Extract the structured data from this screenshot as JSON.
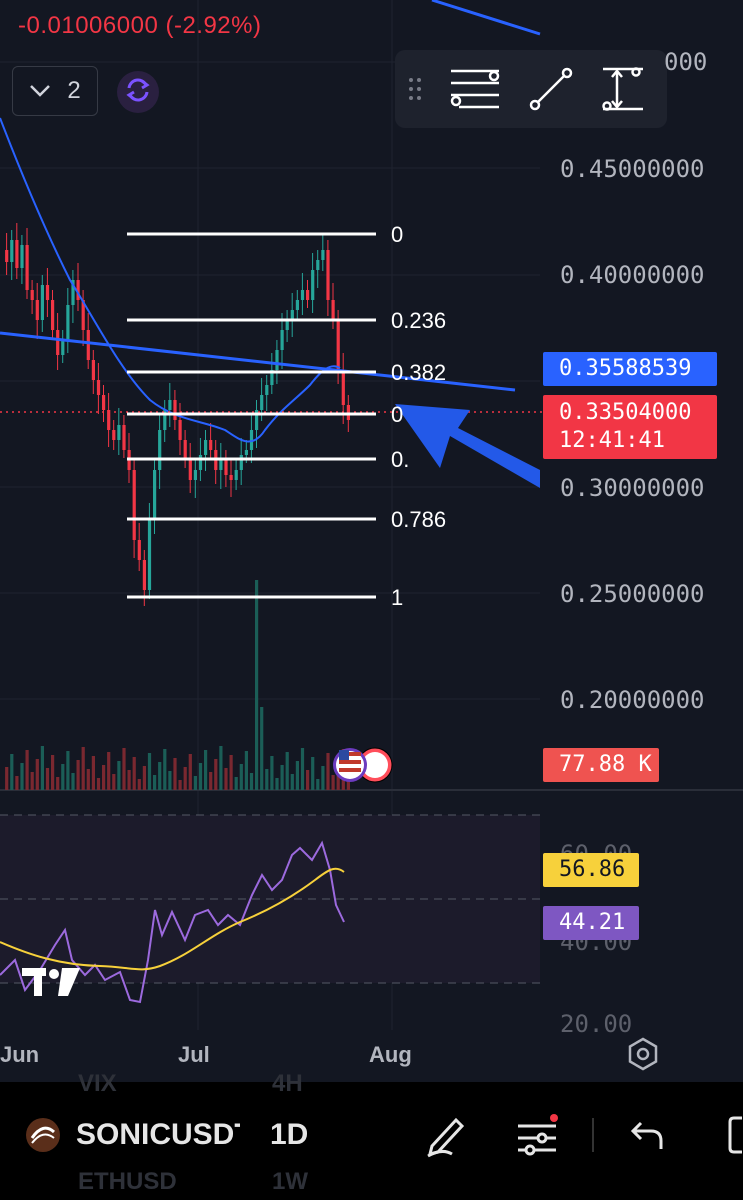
{
  "header": {
    "change_text": "-0.01006000 (-2.92%)"
  },
  "interval_selector": {
    "count": "2",
    "chevron_icon": "chevron-down-icon"
  },
  "sync_icon": "sync-icon",
  "drawing_toolbar": {
    "tools": [
      {
        "name": "drag-handle-icon"
      },
      {
        "name": "fib-retracement-icon"
      },
      {
        "name": "trend-line-icon"
      },
      {
        "name": "price-range-icon"
      }
    ]
  },
  "price_axis": {
    "partial_top_label": "000",
    "labels": [
      "0.45000000",
      "0.40000000",
      "0.30000000",
      "0.25000000",
      "0.20000000"
    ]
  },
  "price_tags": {
    "ma_value": "0.35588539",
    "last_price": "0.33504000",
    "countdown": "12:41:41",
    "volume": "77.88 K"
  },
  "fib_levels": [
    "0",
    "0.236",
    "0.382",
    "0",
    "0.",
    "0.786",
    "1"
  ],
  "rsi_axis": {
    "partial_top": "60.00",
    "partial_mid": "40.00",
    "partial_bottom": "20.00"
  },
  "rsi_tags": {
    "ma": "56.86",
    "rsi": "44.21"
  },
  "time_axis": [
    "Jun",
    "Jul",
    "Aug"
  ],
  "bottom_bar": {
    "ghost_above": [
      "VIX",
      "4H"
    ],
    "symbol": "SONICUSDT",
    "interval": "1D",
    "ghost_below": [
      "ETHUSD",
      "1W"
    ]
  },
  "colors": {
    "background": "#131722",
    "up_candle": "#26a69a",
    "down_candle": "#f23645",
    "ma_line": "#2962ff",
    "rsi_line": "#9c6ade",
    "rsi_ma_line": "#f7d13b",
    "accent_blue": "#2962ff"
  }
}
